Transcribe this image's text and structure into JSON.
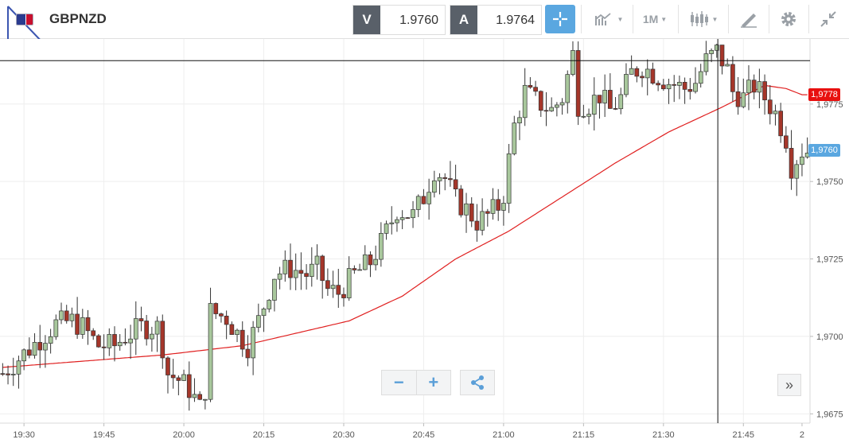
{
  "header": {
    "symbol": "GBPNZD",
    "sell_label": "V",
    "sell_price": "1.9760",
    "buy_label": "A",
    "buy_price": "1.9764",
    "timeframe": "1M",
    "icons": [
      "crosshair-icon",
      "indicator-icon",
      "candlestick-icon",
      "draw-icon",
      "gear-icon",
      "collapse-icon"
    ]
  },
  "colors": {
    "bull": "#a8c79c",
    "bear": "#a5362a",
    "ma": "#e02020",
    "last_price": "#5aa7e0",
    "ma_tag": "#e8100f"
  },
  "chart_data": {
    "type": "candlestick",
    "interval": "1M",
    "ylim": [
      1.9672,
      1.9796
    ],
    "y_ticks": [
      1.9675,
      1.97,
      1.9725,
      1.975,
      1.9775
    ],
    "y_tick_labels": [
      "1,9675",
      "1,9700",
      "1,9725",
      "1,9750",
      "1,9775"
    ],
    "x_tick_labels": [
      {
        "label": "19:30",
        "min": -71
      },
      {
        "label": "19:45",
        "min": -56
      },
      {
        "label": "20:00",
        "min": -41
      },
      {
        "label": "20:15",
        "min": -26
      },
      {
        "label": "20:30",
        "min": -11
      },
      {
        "label": "20:45",
        "min": 4
      },
      {
        "label": "21:00",
        "min": 19
      },
      {
        "label": "21:15",
        "min": 34
      },
      {
        "label": "21:30",
        "min": 49
      },
      {
        "label": "21:45",
        "min": 64
      },
      {
        "label": "2",
        "min": 75
      }
    ],
    "x_range_min": [
      -75.5,
      76.5
    ],
    "crosshair": {
      "min": 59.2,
      "price": 1.9789
    },
    "last_price_label": "1,9760",
    "ma_price_label": "1,9778",
    "ma_anchor_points": [
      [
        -75,
        1.969
      ],
      [
        -60,
        1.9692
      ],
      [
        -45,
        1.9694
      ],
      [
        -30,
        1.9697
      ],
      [
        -20,
        1.9701
      ],
      [
        -10,
        1.9705
      ],
      [
        0,
        1.9713
      ],
      [
        10,
        1.9725
      ],
      [
        20,
        1.9734
      ],
      [
        30,
        1.9745
      ],
      [
        40,
        1.9756
      ],
      [
        50,
        1.9766
      ],
      [
        60,
        1.9774
      ],
      [
        68,
        1.9781
      ],
      [
        72,
        1.978
      ],
      [
        75,
        1.9778
      ]
    ],
    "candle_anchors": [
      [
        -75,
        1.9688
      ],
      [
        -70,
        1.9696
      ],
      [
        -65,
        1.9704
      ],
      [
        -62,
        1.9705
      ],
      [
        -60,
        1.9703
      ],
      [
        -57,
        1.9697
      ],
      [
        -54,
        1.9697
      ],
      [
        -52,
        1.97
      ],
      [
        -49,
        1.9703
      ],
      [
        -46,
        1.9703
      ],
      [
        -45,
        1.9697
      ],
      [
        -44,
        1.9688
      ],
      [
        -42,
        1.9686
      ],
      [
        -40,
        1.9683
      ],
      [
        -38,
        1.9677
      ],
      [
        -37,
        1.9683
      ],
      [
        -36,
        1.9708
      ],
      [
        -33,
        1.9706
      ],
      [
        -31,
        1.9701
      ],
      [
        -29,
        1.9697
      ],
      [
        -27,
        1.9705
      ],
      [
        -24,
        1.972
      ],
      [
        -21,
        1.9722
      ],
      [
        -18,
        1.972
      ],
      [
        -16,
        1.9722
      ],
      [
        -14,
        1.9715
      ],
      [
        -12,
        1.9714
      ],
      [
        -9,
        1.972
      ],
      [
        -6,
        1.9724
      ],
      [
        -4,
        1.973
      ],
      [
        -1,
        1.9741
      ],
      [
        2,
        1.9739
      ],
      [
        4,
        1.9745
      ],
      [
        6,
        1.9754
      ],
      [
        8,
        1.9751
      ],
      [
        10,
        1.9744
      ],
      [
        12,
        1.9741
      ],
      [
        14,
        1.9737
      ],
      [
        16,
        1.9739
      ],
      [
        18,
        1.9742
      ],
      [
        19,
        1.9746
      ],
      [
        21,
        1.9768
      ],
      [
        23,
        1.9779
      ],
      [
        25,
        1.9776
      ],
      [
        28,
        1.9773
      ],
      [
        30,
        1.9777
      ],
      [
        32,
        1.9791
      ],
      [
        33,
        1.9775
      ],
      [
        35,
        1.9775
      ],
      [
        37,
        1.9778
      ],
      [
        39,
        1.9773
      ],
      [
        41,
        1.9777
      ],
      [
        43,
        1.9785
      ],
      [
        45,
        1.9787
      ],
      [
        48,
        1.9784
      ],
      [
        50,
        1.9782
      ],
      [
        53,
        1.978
      ],
      [
        55,
        1.9782
      ],
      [
        57,
        1.9789
      ],
      [
        59,
        1.9792
      ],
      [
        61,
        1.9786
      ],
      [
        62,
        1.9779
      ],
      [
        64,
        1.9777
      ],
      [
        66,
        1.9781
      ],
      [
        68,
        1.9777
      ],
      [
        70,
        1.9772
      ],
      [
        72,
        1.9764
      ],
      [
        73,
        1.9755
      ],
      [
        75,
        1.976
      ],
      [
        76,
        1.976
      ]
    ]
  }
}
